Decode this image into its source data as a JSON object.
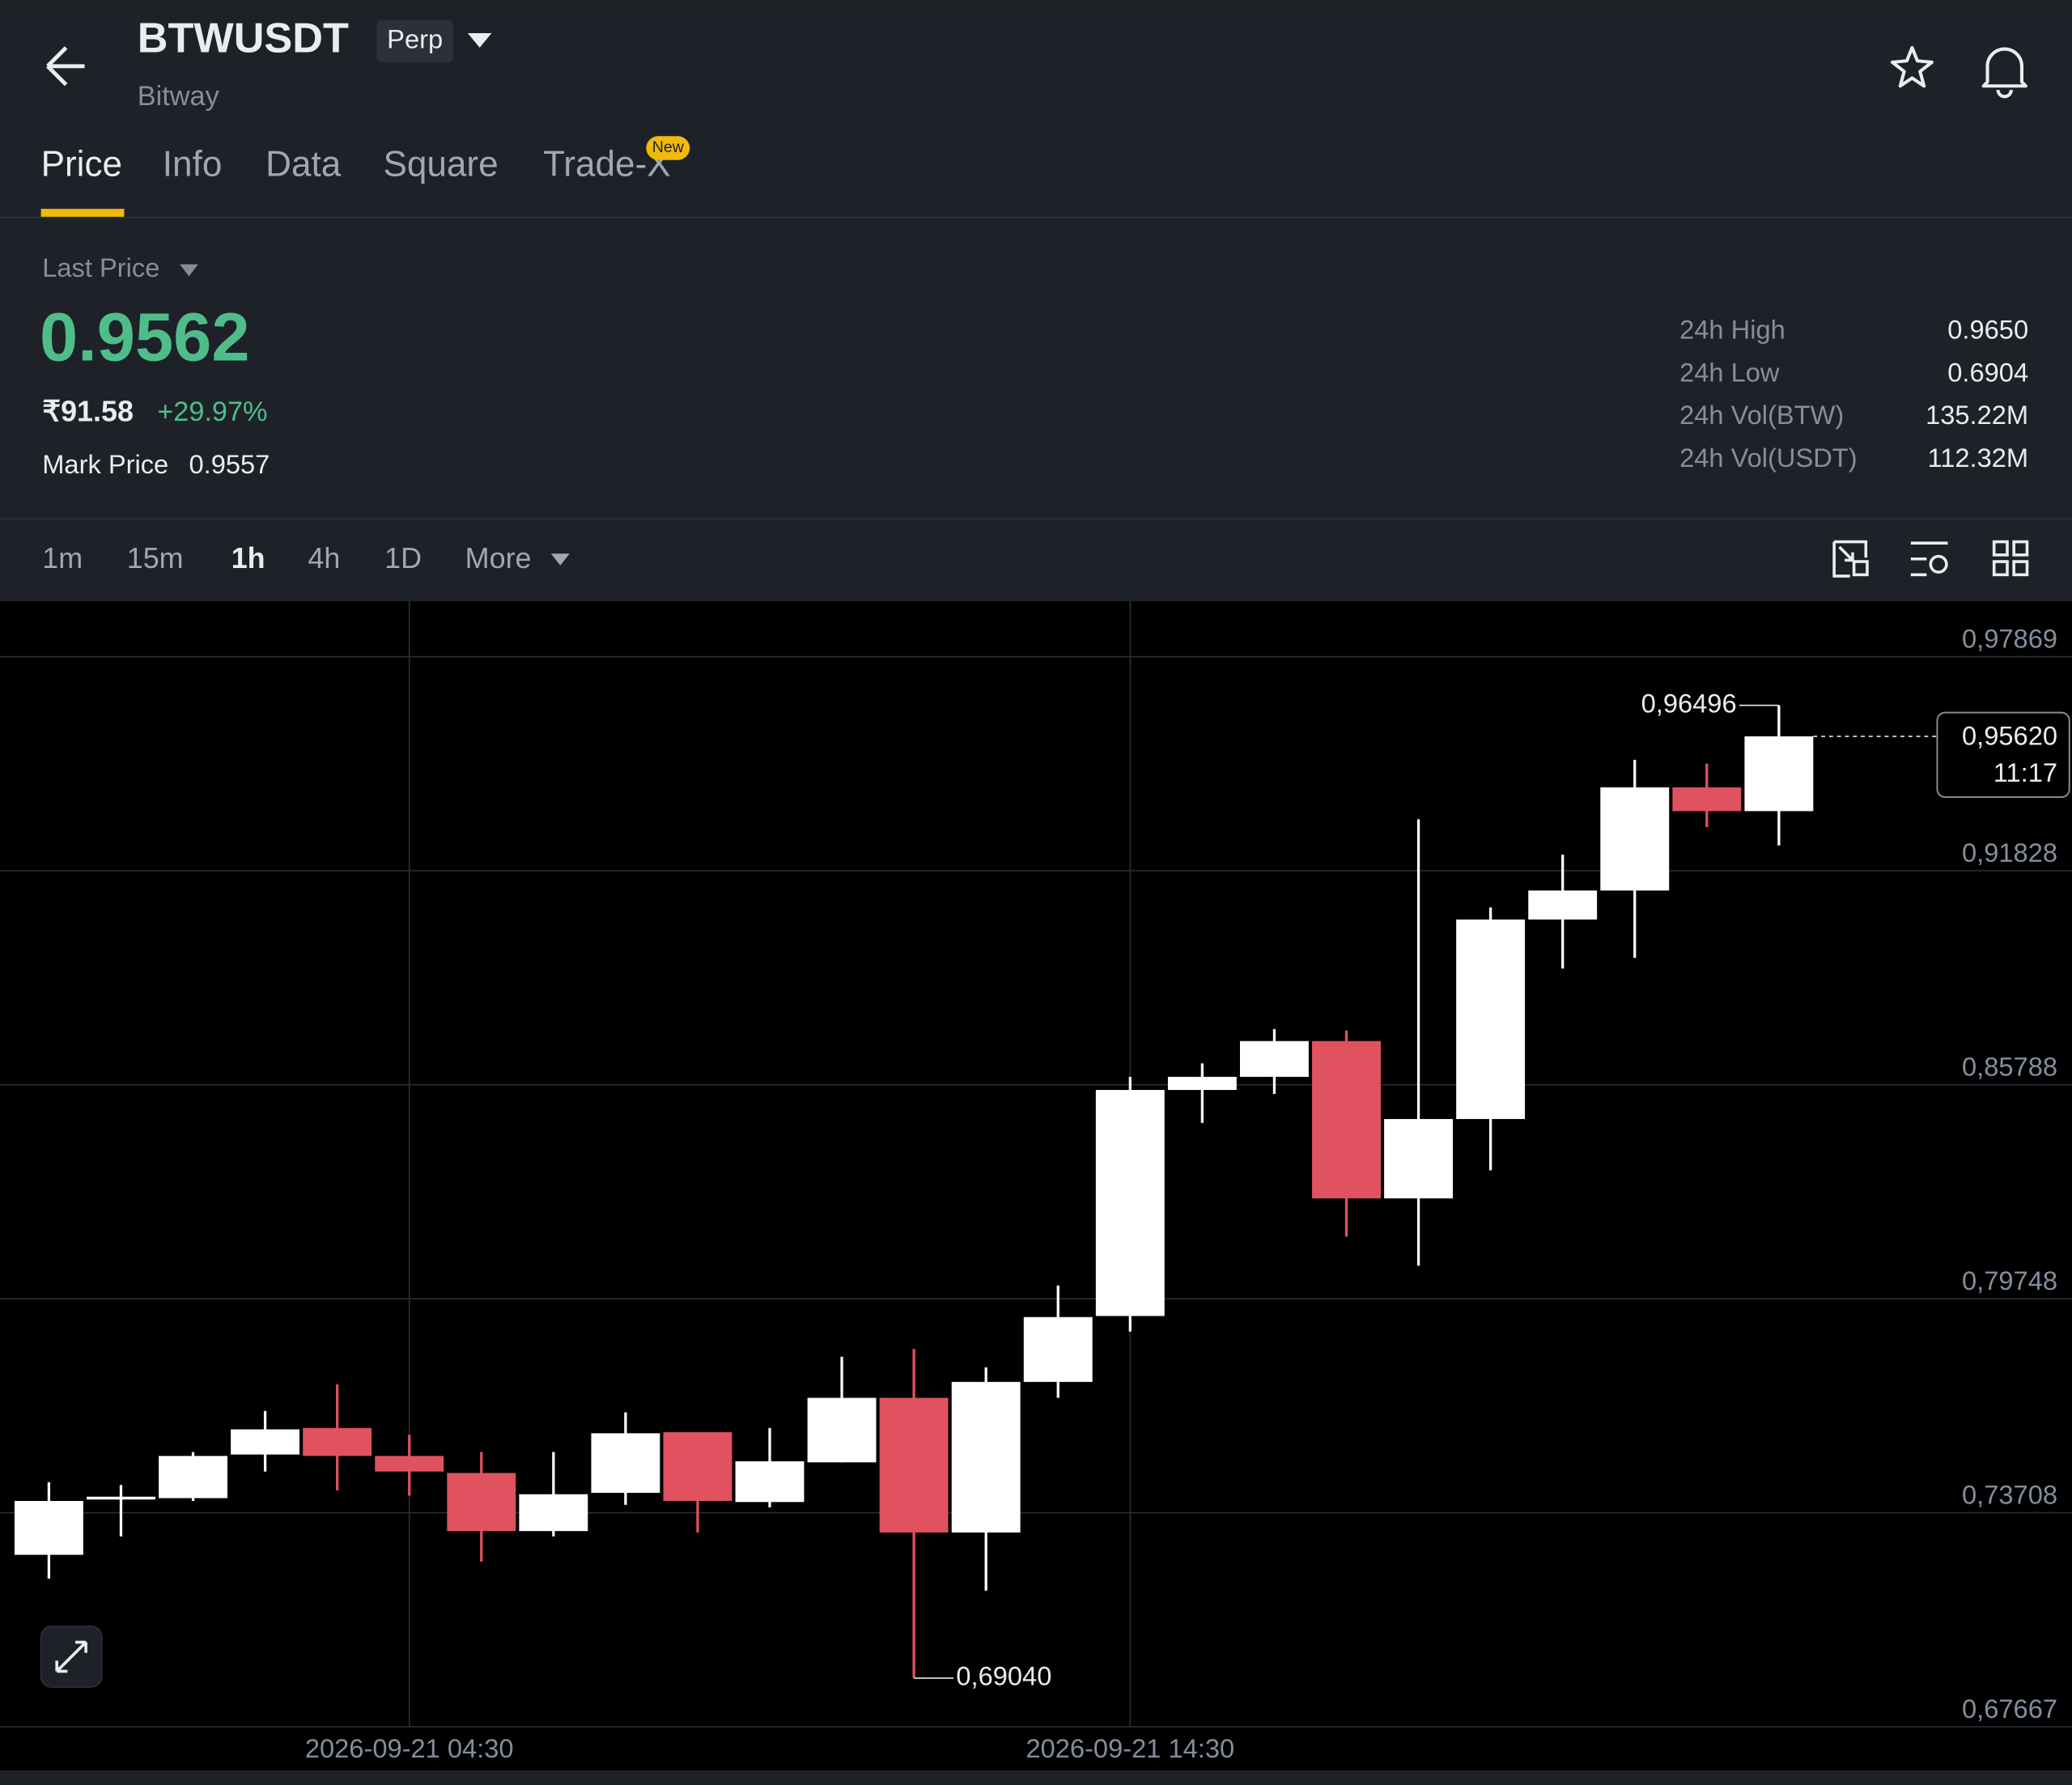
{
  "header": {
    "symbol": "BTWUSDT",
    "contract": "Perp",
    "name": "Bitway"
  },
  "tabs": [
    "Price",
    "Info",
    "Data",
    "Square",
    "Trade-X"
  ],
  "tab_badge": "New",
  "price": {
    "label": "Last Price",
    "last": "0.9562",
    "fiat": "₹91.58",
    "change": "+29.97%",
    "mark_label": "Mark Price",
    "mark": "0.9557"
  },
  "stats": [
    {
      "label": "24h High",
      "value": "0.9650"
    },
    {
      "label": "24h Low",
      "value": "0.6904"
    },
    {
      "label": "24h Vol(BTW)",
      "value": "135.22M"
    },
    {
      "label": "24h Vol(USDT)",
      "value": "112.32M"
    }
  ],
  "intervals": [
    "1m",
    "15m",
    "1h",
    "4h",
    "1D",
    "More"
  ],
  "chart_data": {
    "type": "candlestick",
    "categories": [
      null,
      null,
      null,
      null,
      null,
      "2026-09-21 04:30",
      null,
      null,
      null,
      null,
      null,
      null,
      null,
      null,
      null,
      "2026-09-21 14:30",
      null,
      null,
      null,
      null,
      null,
      null,
      null,
      null,
      null
    ],
    "open": [
      0.7252,
      0.7408,
      0.7412,
      0.7535,
      0.761,
      0.7531,
      0.7483,
      0.7319,
      0.7427,
      0.7598,
      0.7401,
      0.7513,
      0.7695,
      0.7315,
      0.774,
      0.7926,
      0.8564,
      0.8601,
      0.8702,
      0.8258,
      0.8482,
      0.9045,
      0.9127,
      0.9418,
      0.9351
    ],
    "high": [
      0.7457,
      0.7449,
      0.7542,
      0.7658,
      0.7733,
      0.7591,
      0.7542,
      0.7542,
      0.7654,
      0.7598,
      0.761,
      0.7811,
      0.7833,
      0.7781,
      0.8012,
      0.8601,
      0.8639,
      0.8736,
      0.8732,
      0.9328,
      0.9079,
      0.9228,
      0.9496,
      0.9485,
      0.96496
    ],
    "low": [
      0.7185,
      0.7304,
      0.7404,
      0.7487,
      0.7434,
      0.7419,
      0.7233,
      0.7304,
      0.7393,
      0.7315,
      0.7386,
      0.7513,
      0.6904,
      0.7151,
      0.7695,
      0.7882,
      0.8471,
      0.8553,
      0.815,
      0.8068,
      0.8337,
      0.8907,
      0.8937,
      0.9306,
      0.9254
    ],
    "close": [
      0.7404,
      0.7416,
      0.7531,
      0.7606,
      0.7531,
      0.7487,
      0.7319,
      0.7423,
      0.7595,
      0.7404,
      0.7516,
      0.7695,
      0.7315,
      0.774,
      0.7923,
      0.8564,
      0.8601,
      0.8702,
      0.8258,
      0.8482,
      0.9045,
      0.9127,
      0.9418,
      0.9351,
      0.9562
    ],
    "up_color": "#ffffff",
    "down_color": "#e0525f",
    "ylim": [
      0.67667,
      0.99435
    ],
    "yticks": [
      {
        "value": 0.67667,
        "label": "0,67667"
      },
      {
        "value": 0.73708,
        "label": "0,73708"
      },
      {
        "value": 0.79748,
        "label": "0,79748"
      },
      {
        "value": 0.85788,
        "label": "0,85788"
      },
      {
        "value": 0.91828,
        "label": "0,91828"
      },
      {
        "value": 0.97869,
        "label": "0,97869"
      }
    ],
    "grid": true,
    "annotations": [
      {
        "value": 0.96496,
        "label": "0,96496"
      },
      {
        "value": 0.6904,
        "label": "0,69040"
      }
    ],
    "last_price": {
      "value": 0.9562,
      "label": "0,95620",
      "countdown": "11:17"
    }
  }
}
